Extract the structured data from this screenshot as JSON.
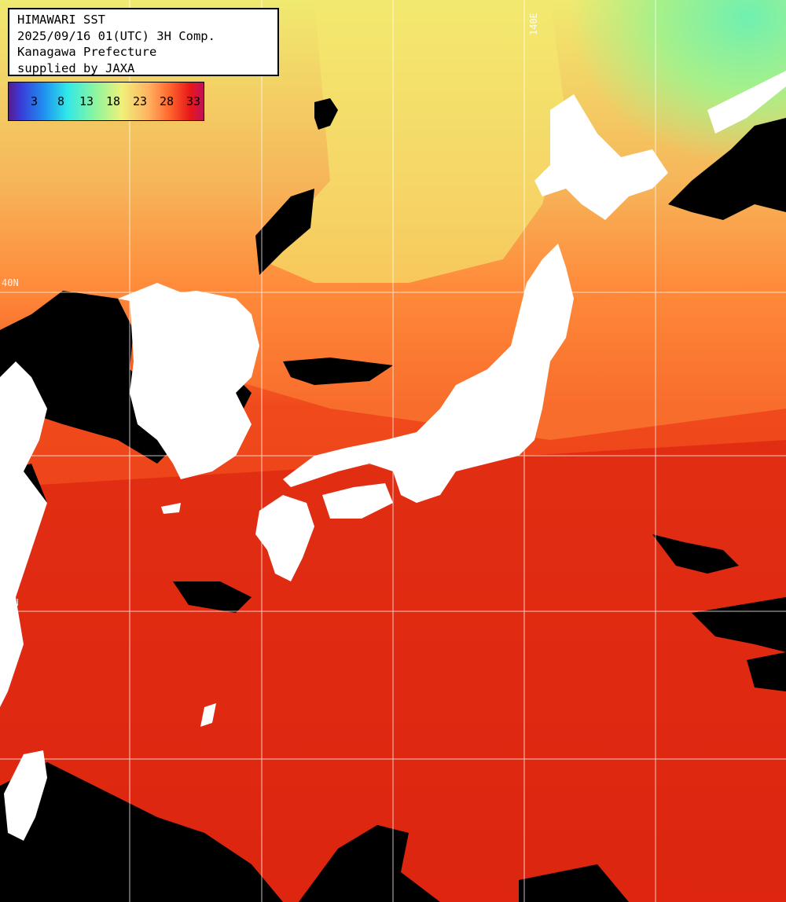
{
  "info": {
    "line1": "HIMAWARI SST",
    "line2": "2025/09/16 01(UTC) 3H Comp.",
    "line3": "Kanagawa Prefecture",
    "line4": "supplied by JAXA"
  },
  "legend": {
    "ticks": [
      "3",
      "8",
      "13",
      "18",
      "23",
      "28",
      "33"
    ]
  },
  "grid_labels": {
    "lon_140": "140E",
    "lat_40": "40N",
    "lat_30": "30N"
  },
  "colors": {
    "ocean_warm": "#e02a10",
    "ocean_hot": "#d81c0c",
    "ocean_mid": "#ff7a30",
    "ocean_orange": "#ffa050",
    "ocean_yellow": "#f0ea70",
    "ocean_green": "#90f090",
    "ocean_cyan": "#40e8c8",
    "land": "#ffffff",
    "cloud": "#000000",
    "grid": "#ffffff"
  }
}
